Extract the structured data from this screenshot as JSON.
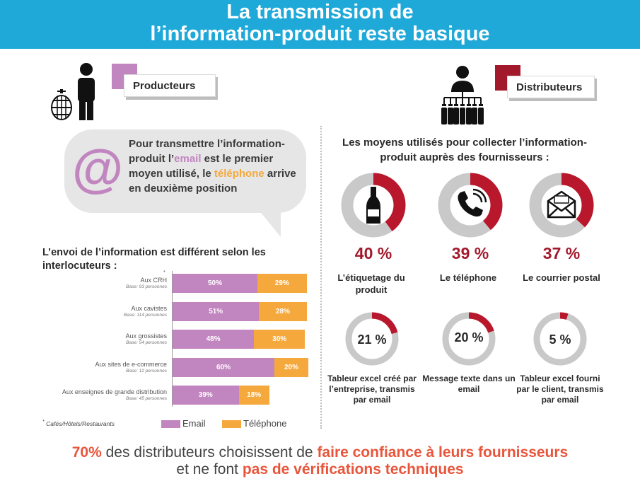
{
  "header": {
    "title_line1": "La transmission de",
    "title_line2": "l’information-produit reste basique"
  },
  "producers": {
    "label": "Producteurs",
    "bubble": {
      "part1": "Pour transmettre l’information-produit l’",
      "email": "email",
      "part2": " est le premier moyen utilisé, le ",
      "phone": "téléphone",
      "part3": " arrive en deuxième position"
    },
    "chart_title": "L’envoi de l’information est différent selon les interlocuteurs :",
    "footnote_star": "*",
    "footnote": "Cafés/Hôtels/Restaurants"
  },
  "chart_data": {
    "type": "bar",
    "orientation": "horizontal",
    "stacked": true,
    "title": "L’envoi de l’information est différent selon les interlocuteurs :",
    "categories": [
      "Aux CRH",
      "Aux cavistes",
      "Aux grossistes",
      "Aux sites de e-commerce",
      "Aux enseignes de grande distribution"
    ],
    "bases": [
      "Base: 93 personnes",
      "Base: 114 personnes",
      "Base: 54 personnes",
      "Base: 12 personnes",
      "Base: 45 personnes"
    ],
    "series": [
      {
        "name": "Email",
        "color": "#c185c0",
        "values": [
          50,
          51,
          48,
          60,
          39
        ]
      },
      {
        "name": "Téléphone",
        "color": "#f5a93c",
        "values": [
          29,
          28,
          30,
          20,
          18
        ]
      }
    ],
    "unit": "%",
    "legend_position": "bottom",
    "xlim": [
      0,
      100
    ]
  },
  "distributors": {
    "label": "Distributeurs",
    "title": "Les moyens utilisés pour collecter l’information-produit auprès des fournisseurs :",
    "top": [
      {
        "value": 40,
        "pct": "40 %",
        "label": "L’étiquetage du produit",
        "icon": "wine-bottle-icon"
      },
      {
        "value": 39,
        "pct": "39 %",
        "label": "Le téléphone",
        "icon": "phone-icon"
      },
      {
        "value": 37,
        "pct": "37 %",
        "label": "Le courrier postal",
        "icon": "envelope-icon"
      }
    ],
    "bottom": [
      {
        "value": 21,
        "pct": "21 %",
        "label": "Tableur excel créé par l’entreprise, transmis par email"
      },
      {
        "value": 20,
        "pct": "20 %",
        "label": "Message texte dans un email"
      },
      {
        "value": 5,
        "pct": "5 %",
        "label": "Tableur excel fourni par le client, transmis par email"
      }
    ],
    "accent": "#b8172c",
    "track": "#c9c9c9"
  },
  "footer": {
    "pct": "70%",
    "text1": " des distributeurs choisissent de ",
    "hl1": "faire confiance à leurs fournisseurs",
    "text2": "et ne font ",
    "hl2": "pas de vérifications techniques"
  },
  "colors": {
    "header": "#1fa9d9",
    "pink": "#c185c0",
    "orange": "#f5a93c",
    "red": "#a3192c",
    "highlight": "#e8553b"
  }
}
